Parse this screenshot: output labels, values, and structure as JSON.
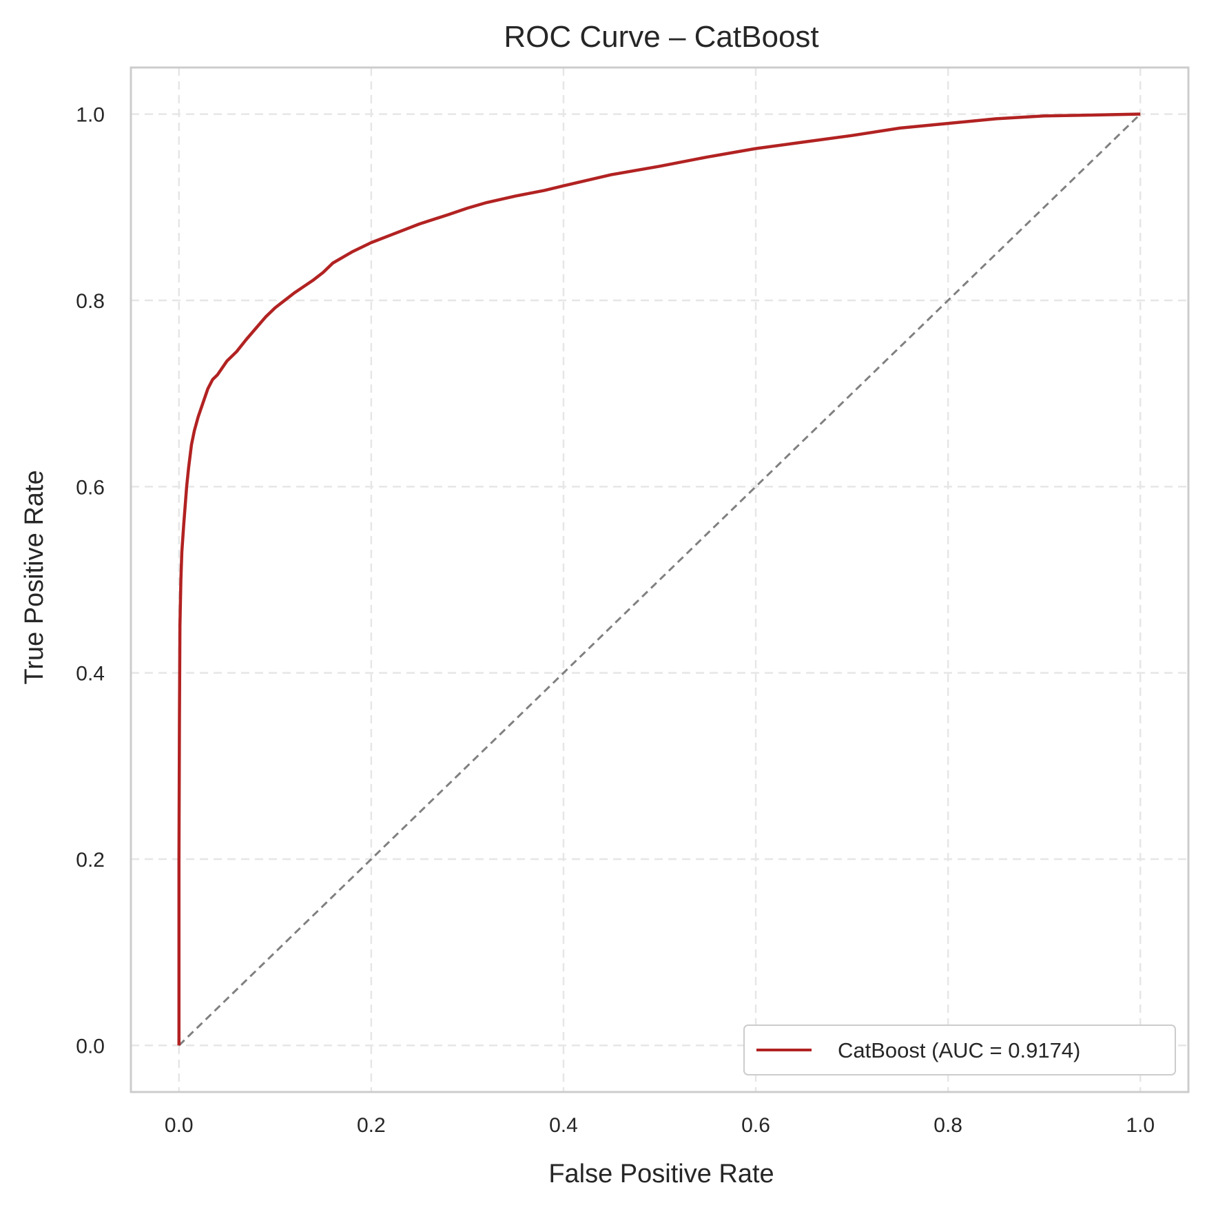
{
  "chart_data": {
    "type": "line",
    "title": "ROC Curve – CatBoost",
    "xlabel": "False Positive Rate",
    "ylabel": "True Positive Rate",
    "xlim": [
      -0.05,
      1.05
    ],
    "ylim": [
      -0.05,
      1.05
    ],
    "xticks": [
      "0.0",
      "0.2",
      "0.4",
      "0.6",
      "0.8",
      "1.0"
    ],
    "yticks": [
      "0.0",
      "0.2",
      "0.4",
      "0.6",
      "0.8",
      "1.0"
    ],
    "grid": true,
    "legend_position": "lower-right",
    "colors": {
      "curve": "#b22222",
      "baseline": "#808080",
      "grid": "#e6e6e6",
      "frame": "#cccccc"
    },
    "series": [
      {
        "name": "CatBoost (AUC = 0.9174)",
        "x": [
          0.0,
          0.0,
          0.0005,
          0.001,
          0.002,
          0.003,
          0.005,
          0.008,
          0.01,
          0.013,
          0.016,
          0.02,
          0.025,
          0.03,
          0.035,
          0.04,
          0.05,
          0.06,
          0.07,
          0.08,
          0.09,
          0.1,
          0.11,
          0.12,
          0.13,
          0.14,
          0.15,
          0.16,
          0.18,
          0.2,
          0.22,
          0.25,
          0.28,
          0.3,
          0.32,
          0.35,
          0.38,
          0.4,
          0.45,
          0.5,
          0.55,
          0.6,
          0.65,
          0.7,
          0.75,
          0.8,
          0.85,
          0.9,
          0.95,
          1.0
        ],
        "y": [
          0.0,
          0.2,
          0.35,
          0.45,
          0.5,
          0.53,
          0.56,
          0.6,
          0.62,
          0.645,
          0.66,
          0.675,
          0.69,
          0.705,
          0.715,
          0.72,
          0.735,
          0.745,
          0.758,
          0.77,
          0.782,
          0.792,
          0.8,
          0.808,
          0.815,
          0.822,
          0.83,
          0.84,
          0.852,
          0.862,
          0.87,
          0.882,
          0.892,
          0.899,
          0.905,
          0.912,
          0.918,
          0.923,
          0.935,
          0.944,
          0.954,
          0.963,
          0.97,
          0.977,
          0.985,
          0.99,
          0.995,
          0.998,
          0.999,
          1.0
        ]
      },
      {
        "name": "",
        "x": [
          0.0,
          1.0
        ],
        "y": [
          0.0,
          1.0
        ]
      }
    ]
  }
}
